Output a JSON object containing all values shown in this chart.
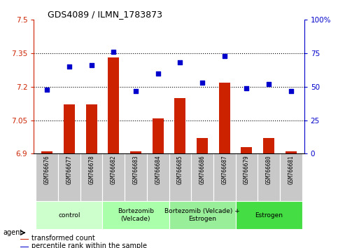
{
  "title": "GDS4089 / ILMN_1783873",
  "samples": [
    "GSM766676",
    "GSM766677",
    "GSM766678",
    "GSM766682",
    "GSM766683",
    "GSM766684",
    "GSM766685",
    "GSM766686",
    "GSM766687",
    "GSM766679",
    "GSM766680",
    "GSM766681"
  ],
  "bar_values": [
    6.91,
    7.12,
    7.12,
    7.33,
    6.91,
    7.06,
    7.15,
    6.97,
    7.22,
    6.93,
    6.97,
    6.91
  ],
  "dot_values": [
    48,
    65,
    66,
    76,
    47,
    60,
    68,
    53,
    73,
    49,
    52,
    47
  ],
  "ylim_left": [
    6.9,
    7.5
  ],
  "ylim_right": [
    0,
    100
  ],
  "yticks_left": [
    6.9,
    7.05,
    7.2,
    7.35,
    7.5
  ],
  "yticks_right": [
    0,
    25,
    50,
    75,
    100
  ],
  "ytick_labels_left": [
    "6.9",
    "7.05",
    "7.2",
    "7.35",
    "7.5"
  ],
  "ytick_labels_right": [
    "0",
    "25",
    "50",
    "75",
    "100%"
  ],
  "hlines": [
    7.05,
    7.2,
    7.35
  ],
  "bar_color": "#CC2200",
  "dot_color": "#0000CC",
  "bar_bottom": 6.9,
  "groups": [
    {
      "label": "control",
      "start": 0,
      "end": 3,
      "color": "#CCFFCC"
    },
    {
      "label": "Bortezomib\n(Velcade)",
      "start": 3,
      "end": 6,
      "color": "#AAFFAA"
    },
    {
      "label": "Bortezomib (Velcade) +\nEstrogen",
      "start": 6,
      "end": 9,
      "color": "#99EE99"
    },
    {
      "label": "Estrogen",
      "start": 9,
      "end": 12,
      "color": "#44DD44"
    }
  ],
  "legend_bar_label": "transformed count",
  "legend_dot_label": "percentile rank within the sample",
  "agent_label": "agent",
  "tick_color_left": "#CC2200",
  "tick_color_right": "#0000CC",
  "bar_width": 0.5,
  "xtick_gray": "#C8C8C8",
  "spine_color": "#999999"
}
